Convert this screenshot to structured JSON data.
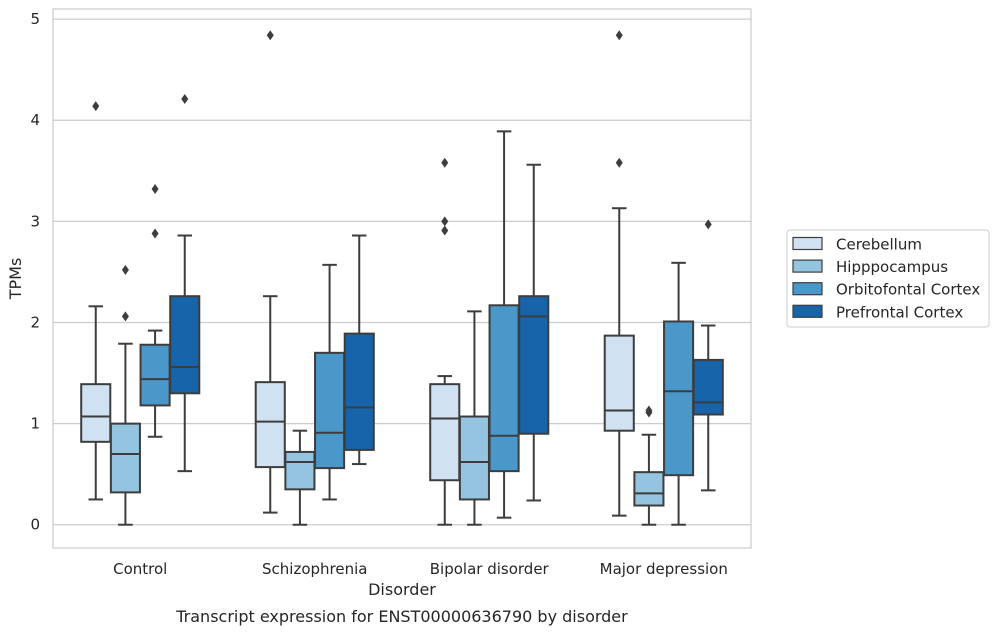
{
  "chart_data": {
    "type": "box",
    "xlabel": "Disorder",
    "ylabel": "TPMs",
    "caption": "Transcript expression for ENST00000636790 by disorder",
    "categories": [
      "Control",
      "Schizophrenia",
      "Bipolar disorder",
      "Major depression"
    ],
    "ylim": [
      -0.23,
      5.1
    ],
    "yticks": [
      0,
      1,
      2,
      3,
      4,
      5
    ],
    "ytick_labels": [
      "0",
      "1",
      "2",
      "3",
      "4",
      "5"
    ],
    "grid": "horizontal",
    "legend_position": "right",
    "series": [
      {
        "name": "Cerebellum",
        "color": "#d0e1f2",
        "boxes": [
          {
            "whislo": 0.25,
            "q1": 0.82,
            "med": 1.07,
            "q3": 1.39,
            "whishi": 2.16,
            "fliers": [
              4.14
            ]
          },
          {
            "whislo": 0.12,
            "q1": 0.57,
            "med": 1.02,
            "q3": 1.41,
            "whishi": 2.26,
            "fliers": [
              4.84
            ]
          },
          {
            "whislo": 0.0,
            "q1": 0.44,
            "med": 1.05,
            "q3": 1.39,
            "whishi": 1.47,
            "fliers": [
              2.91,
              3.0,
              3.58
            ]
          },
          {
            "whislo": 0.09,
            "q1": 0.93,
            "med": 1.13,
            "q3": 1.87,
            "whishi": 3.13,
            "fliers": [
              3.58,
              4.84
            ]
          }
        ]
      },
      {
        "name": "Hipppocampus",
        "color": "#94c4df",
        "boxes": [
          {
            "whislo": 0.0,
            "q1": 0.32,
            "med": 0.7,
            "q3": 1.0,
            "whishi": 1.79,
            "fliers": [
              2.06,
              2.52
            ]
          },
          {
            "whislo": 0.0,
            "q1": 0.35,
            "med": 0.62,
            "q3": 0.72,
            "whishi": 0.93,
            "fliers": []
          },
          {
            "whislo": 0.0,
            "q1": 0.25,
            "med": 0.62,
            "q3": 1.07,
            "whishi": 2.11,
            "fliers": []
          },
          {
            "whislo": 0.0,
            "q1": 0.19,
            "med": 0.31,
            "q3": 0.52,
            "whishi": 0.89,
            "fliers": [
              1.11,
              1.13
            ]
          }
        ]
      },
      {
        "name": "Orbitofontal Cortex",
        "color": "#4a98c9",
        "boxes": [
          {
            "whislo": 0.87,
            "q1": 1.18,
            "med": 1.44,
            "q3": 1.78,
            "whishi": 1.92,
            "fliers": [
              2.88,
              3.32
            ]
          },
          {
            "whislo": 0.25,
            "q1": 0.56,
            "med": 0.91,
            "q3": 1.7,
            "whishi": 2.57,
            "fliers": []
          },
          {
            "whislo": 0.07,
            "q1": 0.53,
            "med": 0.88,
            "q3": 2.17,
            "whishi": 3.89,
            "fliers": []
          },
          {
            "whislo": 0.0,
            "q1": 0.49,
            "med": 1.32,
            "q3": 2.01,
            "whishi": 2.59,
            "fliers": []
          }
        ]
      },
      {
        "name": "Prefrontal Cortex",
        "color": "#1764ab",
        "boxes": [
          {
            "whislo": 0.53,
            "q1": 1.3,
            "med": 1.56,
            "q3": 2.26,
            "whishi": 2.86,
            "fliers": [
              4.21
            ]
          },
          {
            "whislo": 0.6,
            "q1": 0.74,
            "med": 1.16,
            "q3": 1.89,
            "whishi": 2.86,
            "fliers": []
          },
          {
            "whislo": 0.24,
            "q1": 0.9,
            "med": 2.06,
            "q3": 2.26,
            "whishi": 3.56,
            "fliers": []
          },
          {
            "whislo": 0.34,
            "q1": 1.09,
            "med": 1.21,
            "q3": 1.63,
            "whishi": 1.97,
            "fliers": [
              2.97
            ]
          }
        ]
      }
    ]
  }
}
